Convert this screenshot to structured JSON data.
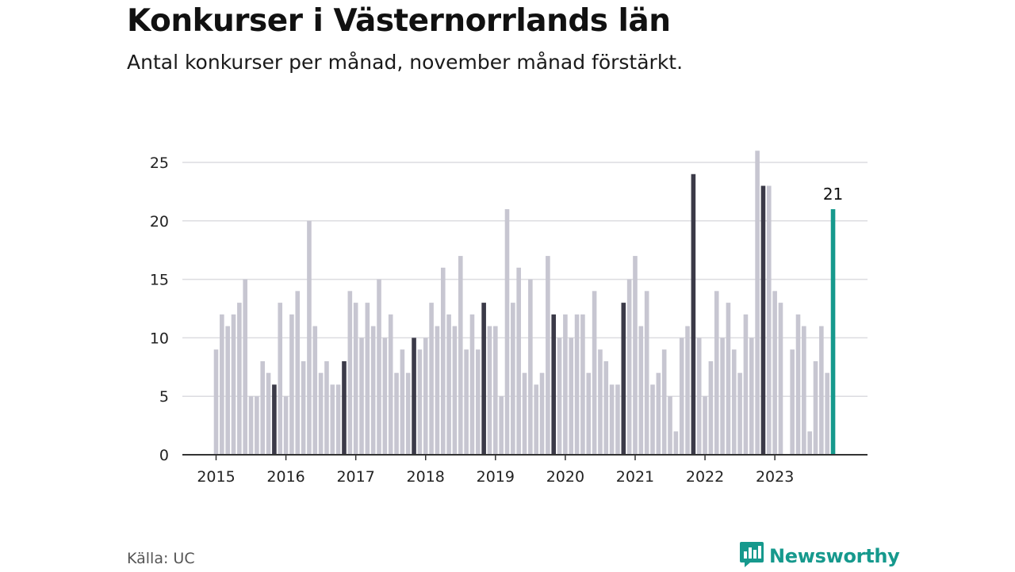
{
  "header": {
    "title": "Konkurser i Västernorrlands län",
    "subtitle": "Antal konkurser per månad, november månad förstärkt."
  },
  "footer": {
    "source": "Källa: UC",
    "brand": "Newsworthy",
    "brand_icon": "newsworthy-logo-icon"
  },
  "colors": {
    "bar": "#c7c6d1",
    "highlight": "#3b3a48",
    "current": "#16998d",
    "grid": "#dcdce0",
    "axis": "#333333",
    "brand": "#16998d"
  },
  "chart_data": {
    "type": "bar",
    "title": "Konkurser i Västernorrlands län",
    "subtitle": "Antal konkurser per månad, november månad förstärkt.",
    "xlabel": "",
    "ylabel": "",
    "ylim": [
      0,
      27
    ],
    "yticks": [
      0,
      5,
      10,
      15,
      20,
      25
    ],
    "grid": true,
    "start": "2015-01",
    "x_tick_labels": [
      "2015",
      "2016",
      "2017",
      "2018",
      "2019",
      "2020",
      "2021",
      "2022",
      "2023"
    ],
    "highlight_month": "november",
    "annotation": "21",
    "values": [
      9,
      12,
      11,
      12,
      13,
      15,
      5,
      5,
      8,
      7,
      6,
      13,
      5,
      12,
      14,
      8,
      20,
      11,
      7,
      8,
      6,
      6,
      8,
      14,
      13,
      10,
      13,
      11,
      15,
      10,
      12,
      7,
      9,
      7,
      10,
      9,
      10,
      13,
      11,
      16,
      12,
      11,
      17,
      9,
      12,
      9,
      13,
      11,
      11,
      5,
      21,
      13,
      16,
      7,
      15,
      6,
      7,
      17,
      12,
      10,
      12,
      10,
      12,
      12,
      7,
      14,
      9,
      8,
      6,
      6,
      13,
      15,
      17,
      11,
      14,
      6,
      7,
      9,
      5,
      2,
      10,
      11,
      24,
      10,
      5,
      8,
      14,
      10,
      13,
      9,
      7,
      12,
      10,
      26,
      23,
      23,
      14,
      13,
      0,
      9,
      12,
      11,
      2,
      8,
      11,
      7,
      21
    ]
  }
}
